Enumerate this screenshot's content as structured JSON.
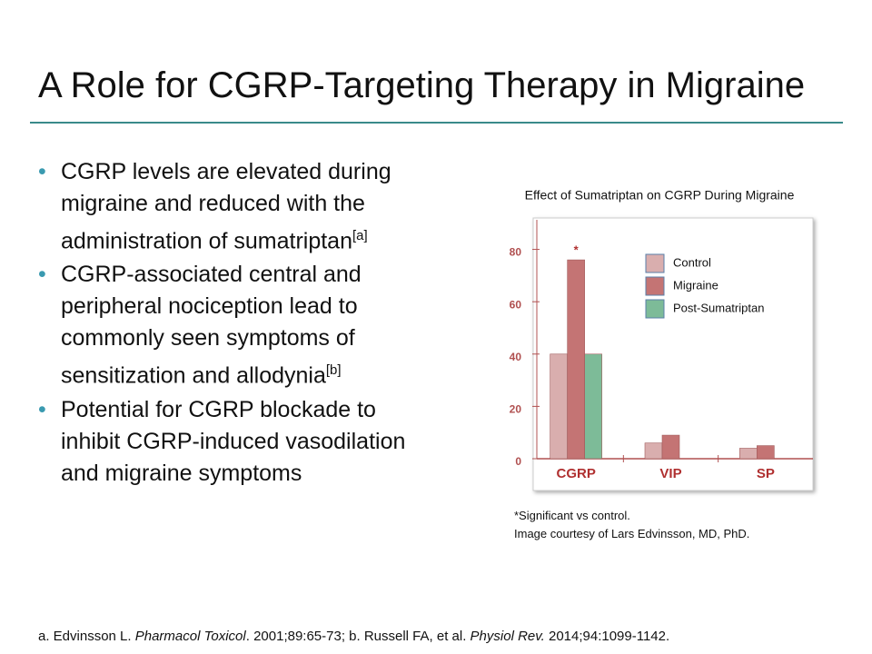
{
  "title": "A Role for CGRP-Targeting Therapy in Migraine",
  "bullets": [
    {
      "text": "CGRP levels are elevated during migraine and reduced with the administration of sumatriptan",
      "ref": "[a]"
    },
    {
      "text": "CGRP-associated central and peripheral nociception lead to commonly seen symptoms of sensitization and allodynia",
      "ref": "[b]"
    },
    {
      "text": "Potential for CGRP blockade to inhibit CGRP-induced vasodilation and migraine symptoms"
    }
  ],
  "chart_data": {
    "type": "bar",
    "title": "Effect of Sumatriptan on CGRP During Migraine",
    "categories": [
      "CGRP",
      "VIP",
      "SP"
    ],
    "series": [
      {
        "name": "Control",
        "color": "#d9aeae",
        "values": [
          40,
          6,
          4
        ]
      },
      {
        "name": "Migraine",
        "color": "#c47474",
        "values": [
          76,
          9,
          5
        ]
      },
      {
        "name": "Post-Sumatriptan",
        "color": "#7dbb98",
        "values": [
          40,
          null,
          null
        ]
      }
    ],
    "ylim": [
      0,
      92
    ],
    "yticks": [
      0,
      20,
      40,
      60,
      80
    ],
    "annotation": "*",
    "legend": "upper-right"
  },
  "notes": [
    "*Significant vs control.",
    "Image courtesy of Lars Edvinsson, MD, PhD."
  ],
  "footer": [
    {
      "text": "a. Edvinsson L. ",
      "italic": false
    },
    {
      "text": "Pharmacol Toxicol",
      "italic": true
    },
    {
      "text": ". 2001;89:65-73; b. Russell FA, et al. ",
      "italic": false
    },
    {
      "text": "Physiol Rev.",
      "italic": true
    },
    {
      "text": " 2014;94:1099-1142.",
      "italic": false
    }
  ]
}
